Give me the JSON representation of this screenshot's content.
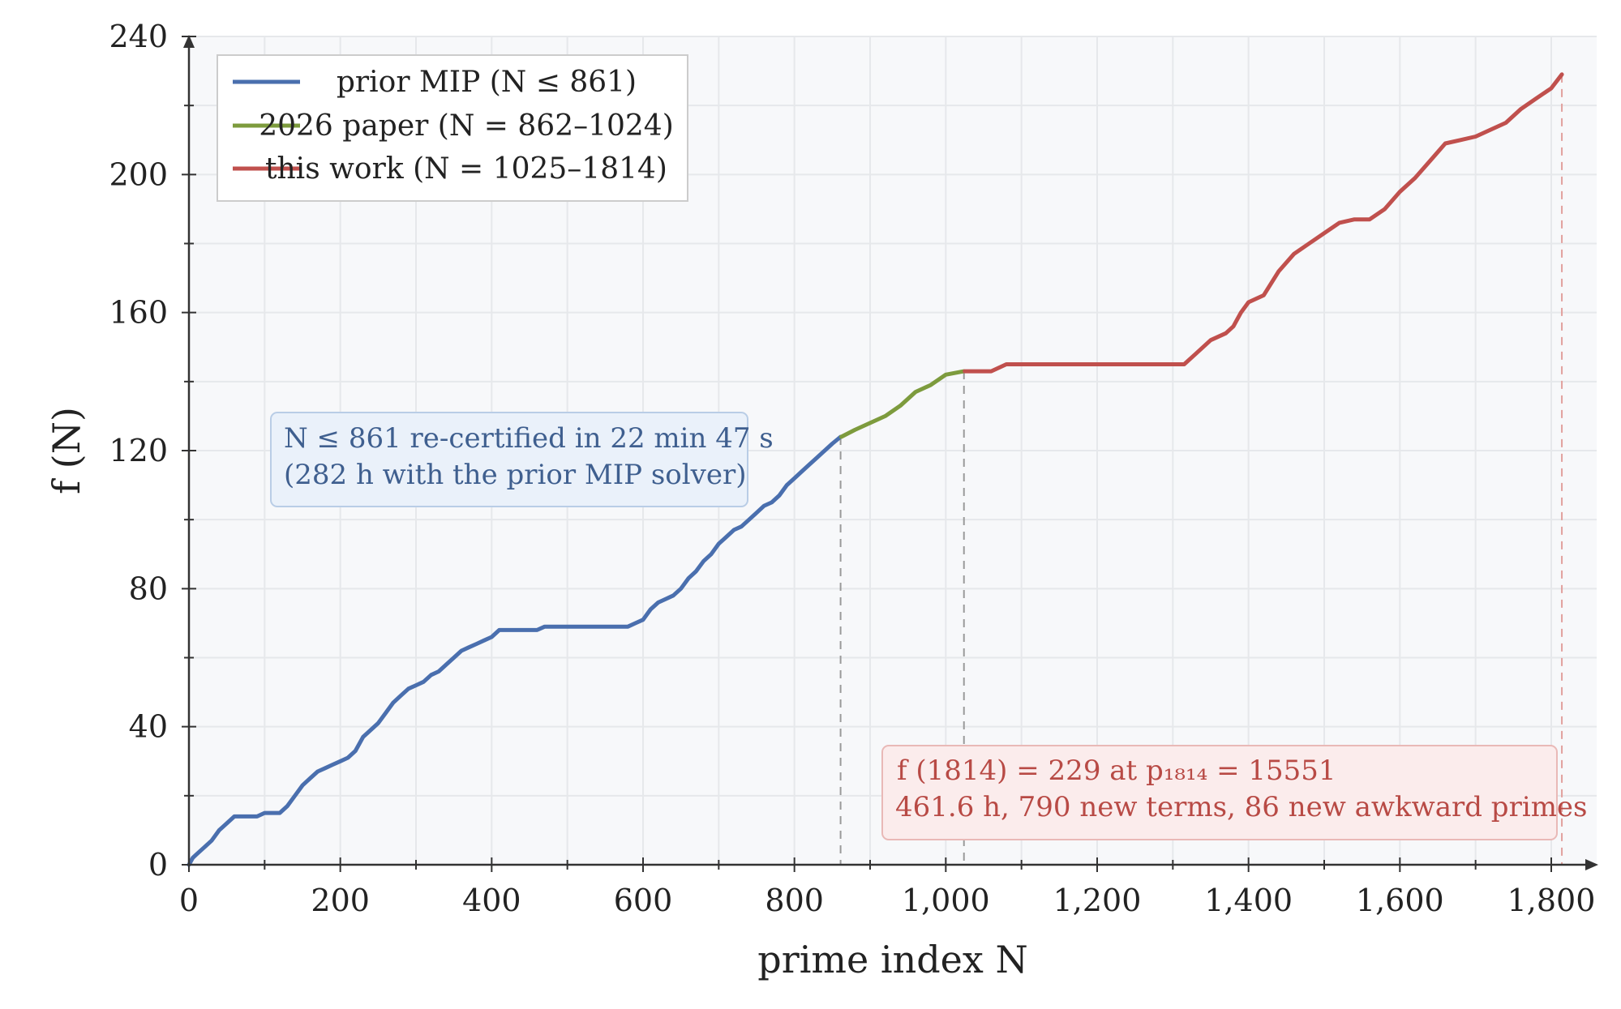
{
  "chart_data": {
    "type": "line",
    "title": "",
    "xlabel": "prime index N",
    "ylabel": "f (N)",
    "xlim": [
      0,
      1860
    ],
    "ylim": [
      0,
      240
    ],
    "x_ticks": [
      0,
      200,
      400,
      600,
      800,
      1000,
      1200,
      1400,
      1600,
      1800
    ],
    "x_tick_labels": [
      "0",
      "200",
      "400",
      "600",
      "800",
      "1,000",
      "1,200",
      "1,400",
      "1,600",
      "1,800"
    ],
    "y_ticks": [
      0,
      40,
      80,
      120,
      160,
      200,
      240
    ],
    "y_tick_labels": [
      "0",
      "40",
      "80",
      "120",
      "160",
      "200",
      "240"
    ],
    "grid": true,
    "legend_position": "top-left",
    "series": [
      {
        "name": "prior MIP (N ≤ 861)",
        "color": "#4a6fae",
        "points": [
          [
            0,
            0
          ],
          [
            5,
            2
          ],
          [
            10,
            3
          ],
          [
            20,
            5
          ],
          [
            30,
            7
          ],
          [
            40,
            10
          ],
          [
            50,
            12
          ],
          [
            60,
            14
          ],
          [
            70,
            14
          ],
          [
            80,
            14
          ],
          [
            90,
            14
          ],
          [
            100,
            15
          ],
          [
            120,
            15
          ],
          [
            130,
            17
          ],
          [
            140,
            20
          ],
          [
            150,
            23
          ],
          [
            160,
            25
          ],
          [
            170,
            27
          ],
          [
            180,
            28
          ],
          [
            190,
            29
          ],
          [
            200,
            30
          ],
          [
            210,
            31
          ],
          [
            220,
            33
          ],
          [
            230,
            37
          ],
          [
            240,
            39
          ],
          [
            250,
            41
          ],
          [
            260,
            44
          ],
          [
            270,
            47
          ],
          [
            280,
            49
          ],
          [
            290,
            51
          ],
          [
            300,
            52
          ],
          [
            310,
            53
          ],
          [
            320,
            55
          ],
          [
            330,
            56
          ],
          [
            340,
            58
          ],
          [
            350,
            60
          ],
          [
            360,
            62
          ],
          [
            370,
            63
          ],
          [
            380,
            64
          ],
          [
            390,
            65
          ],
          [
            400,
            66
          ],
          [
            410,
            68
          ],
          [
            420,
            68
          ],
          [
            440,
            68
          ],
          [
            460,
            68
          ],
          [
            470,
            69
          ],
          [
            500,
            69
          ],
          [
            550,
            69
          ],
          [
            580,
            69
          ],
          [
            590,
            70
          ],
          [
            600,
            71
          ],
          [
            610,
            74
          ],
          [
            620,
            76
          ],
          [
            630,
            77
          ],
          [
            640,
            78
          ],
          [
            650,
            80
          ],
          [
            660,
            83
          ],
          [
            670,
            85
          ],
          [
            680,
            88
          ],
          [
            690,
            90
          ],
          [
            700,
            93
          ],
          [
            710,
            95
          ],
          [
            720,
            97
          ],
          [
            730,
            98
          ],
          [
            740,
            100
          ],
          [
            750,
            102
          ],
          [
            760,
            104
          ],
          [
            770,
            105
          ],
          [
            780,
            107
          ],
          [
            790,
            110
          ],
          [
            800,
            112
          ],
          [
            810,
            114
          ],
          [
            820,
            116
          ],
          [
            830,
            118
          ],
          [
            840,
            120
          ],
          [
            850,
            122
          ],
          [
            861,
            124
          ]
        ]
      },
      {
        "name": "2026 paper (N = 862–1024)",
        "color": "#7d9b3d",
        "points": [
          [
            862,
            124
          ],
          [
            880,
            126
          ],
          [
            900,
            128
          ],
          [
            920,
            130
          ],
          [
            940,
            133
          ],
          [
            960,
            137
          ],
          [
            980,
            139
          ],
          [
            1000,
            142
          ],
          [
            1024,
            143
          ]
        ]
      },
      {
        "name": "this work (N = 1025–1814)",
        "color": "#c0504d",
        "points": [
          [
            1025,
            143
          ],
          [
            1060,
            143
          ],
          [
            1080,
            145
          ],
          [
            1150,
            145
          ],
          [
            1200,
            145
          ],
          [
            1250,
            145
          ],
          [
            1300,
            145
          ],
          [
            1315,
            145
          ],
          [
            1330,
            148
          ],
          [
            1350,
            152
          ],
          [
            1370,
            154
          ],
          [
            1380,
            156
          ],
          [
            1390,
            160
          ],
          [
            1400,
            163
          ],
          [
            1420,
            165
          ],
          [
            1440,
            172
          ],
          [
            1460,
            177
          ],
          [
            1480,
            180
          ],
          [
            1500,
            183
          ],
          [
            1520,
            186
          ],
          [
            1540,
            187
          ],
          [
            1560,
            187
          ],
          [
            1580,
            190
          ],
          [
            1600,
            195
          ],
          [
            1620,
            199
          ],
          [
            1640,
            204
          ],
          [
            1660,
            209
          ],
          [
            1680,
            210
          ],
          [
            1700,
            211
          ],
          [
            1720,
            213
          ],
          [
            1740,
            215
          ],
          [
            1760,
            219
          ],
          [
            1780,
            222
          ],
          [
            1800,
            225
          ],
          [
            1814,
            229
          ]
        ]
      }
    ],
    "reference_lines_x": [
      861,
      1024,
      1814
    ],
    "annotations": [
      {
        "line1": "N ≤ 861 re-certified in 22 min 47 s",
        "line2": "(282 h with the prior MIP solver)"
      },
      {
        "line1": "f (1814) = 229  at  p₁₈₁₄ = 15551",
        "line2": "461.6 h, 790 new terms, 86 new awkward primes"
      }
    ]
  }
}
